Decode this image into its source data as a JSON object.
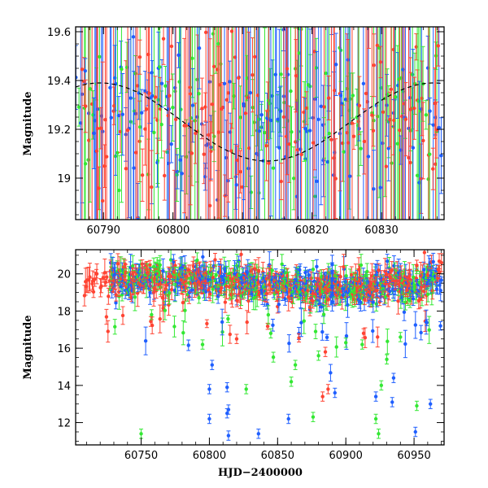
{
  "colors": {
    "green": "#33e833",
    "blue": "#1f5fff",
    "red": "#ff4433",
    "axes": "#000000",
    "model": "#000000"
  },
  "chart_data": [
    {
      "name": "top-panel",
      "type": "scatter",
      "title": "",
      "xlabel": "",
      "ylabel": "Magnitude",
      "xlim": [
        60786,
        60839
      ],
      "ylim": [
        19.62,
        18.83
      ],
      "y_inverted": true,
      "xticks": [
        60790,
        60800,
        60810,
        60820,
        60830
      ],
      "xtick_labels": [
        "60790",
        "60800",
        "60810",
        "60820",
        "60830"
      ],
      "yticks": [
        19.0,
        19.2,
        19.4,
        19.6
      ],
      "ytick_labels": [
        "19",
        "19.2",
        "19.4",
        "19.6"
      ],
      "model_curve": {
        "style": "dashed",
        "min_mag": 19.07,
        "max_mag": 19.39,
        "peak_x": 60813.5,
        "period_days": 48
      },
      "series": [
        {
          "name": "green",
          "color_key": "green"
        },
        {
          "name": "blue",
          "color_key": "blue"
        },
        {
          "name": "red",
          "color_key": "red"
        }
      ]
    },
    {
      "name": "bottom-panel",
      "type": "scatter",
      "title": "",
      "xlabel": "HJD−2400000",
      "ylabel": "Magnitude",
      "xlim": [
        60702,
        60972
      ],
      "ylim": [
        21.3,
        10.8
      ],
      "y_inverted": true,
      "xticks": [
        60750,
        60800,
        60850,
        60900,
        60950
      ],
      "xtick_labels": [
        "60750",
        "60800",
        "60850",
        "60900",
        "60950"
      ],
      "yticks": [
        12,
        14,
        16,
        18,
        20
      ],
      "ytick_labels": [
        "12",
        "14",
        "16",
        "18",
        "20"
      ],
      "typical_magnitude": 19.5,
      "series": [
        {
          "name": "green",
          "color_key": "green"
        },
        {
          "name": "blue",
          "color_key": "blue"
        },
        {
          "name": "red",
          "color_key": "red"
        }
      ],
      "outliers": [
        {
          "series": "green",
          "x": 60750,
          "y": 11.4
        },
        {
          "series": "blue",
          "x": 60800,
          "y": 12.2
        },
        {
          "series": "blue",
          "x": 60800,
          "y": 13.8
        },
        {
          "series": "blue",
          "x": 60802,
          "y": 15.1
        },
        {
          "series": "blue",
          "x": 60813,
          "y": 12.5
        },
        {
          "series": "blue",
          "x": 60813,
          "y": 13.9
        },
        {
          "series": "blue",
          "x": 60814,
          "y": 11.3
        },
        {
          "series": "blue",
          "x": 60814,
          "y": 12.7
        },
        {
          "series": "blue",
          "x": 60836,
          "y": 11.4
        },
        {
          "series": "green",
          "x": 60827,
          "y": 13.8
        },
        {
          "series": "blue",
          "x": 60858,
          "y": 12.2
        },
        {
          "series": "green",
          "x": 60876,
          "y": 12.3
        },
        {
          "series": "green",
          "x": 60860,
          "y": 14.2
        },
        {
          "series": "green",
          "x": 60863,
          "y": 15.1
        },
        {
          "series": "red",
          "x": 60883,
          "y": 13.4
        },
        {
          "series": "red",
          "x": 60887,
          "y": 13.8
        },
        {
          "series": "blue",
          "x": 60892,
          "y": 13.6
        },
        {
          "series": "green",
          "x": 60924,
          "y": 11.4
        },
        {
          "series": "green",
          "x": 60922,
          "y": 12.2
        },
        {
          "series": "blue",
          "x": 60922,
          "y": 13.4
        },
        {
          "series": "green",
          "x": 60926,
          "y": 14.0
        },
        {
          "series": "blue",
          "x": 60934,
          "y": 13.1
        },
        {
          "series": "blue",
          "x": 60935,
          "y": 14.4
        },
        {
          "series": "blue",
          "x": 60951,
          "y": 11.5
        },
        {
          "series": "green",
          "x": 60952,
          "y": 12.9
        },
        {
          "series": "blue",
          "x": 60962,
          "y": 13.0
        },
        {
          "series": "green",
          "x": 60880,
          "y": 15.6
        },
        {
          "series": "red",
          "x": 60885,
          "y": 15.8
        },
        {
          "series": "green",
          "x": 60900,
          "y": 16.3
        },
        {
          "series": "green",
          "x": 60912,
          "y": 16.2
        },
        {
          "series": "red",
          "x": 60913,
          "y": 16.8
        },
        {
          "series": "green",
          "x": 60930,
          "y": 15.4
        },
        {
          "series": "green",
          "x": 60940,
          "y": 16.6
        },
        {
          "series": "green",
          "x": 60795,
          "y": 16.2
        },
        {
          "series": "red",
          "x": 60820,
          "y": 16.5
        },
        {
          "series": "green",
          "x": 60845,
          "y": 16.8
        }
      ]
    }
  ]
}
